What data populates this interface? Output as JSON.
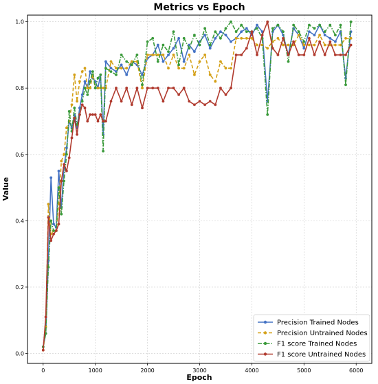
{
  "chart_data": {
    "type": "line",
    "title": "Metrics vs Epoch",
    "xlabel": "Epoch",
    "ylabel": "Value",
    "xlim": [
      -300,
      6300
    ],
    "ylim": [
      -0.03,
      1.02
    ],
    "xticks": [
      0,
      1000,
      2000,
      3000,
      4000,
      5000,
      6000
    ],
    "yticks": [
      0.0,
      0.2,
      0.4,
      0.6,
      0.8,
      1.0
    ],
    "grid": true,
    "legend_position": "bottom-right",
    "series": [
      {
        "name": "Precision Trained Nodes",
        "color": "#4472c4",
        "dash": "solid",
        "x": [
          0,
          50,
          100,
          150,
          200,
          250,
          300,
          350,
          400,
          450,
          500,
          550,
          600,
          650,
          700,
          750,
          800,
          850,
          900,
          950,
          1000,
          1050,
          1100,
          1150,
          1200,
          1300,
          1400,
          1500,
          1600,
          1700,
          1800,
          1900,
          2000,
          2100,
          2200,
          2300,
          2400,
          2500,
          2600,
          2700,
          2800,
          2900,
          3000,
          3100,
          3200,
          3300,
          3400,
          3500,
          3600,
          3700,
          3800,
          3900,
          4000,
          4100,
          4200,
          4300,
          4400,
          4500,
          4600,
          4700,
          4800,
          4900,
          5000,
          5100,
          5200,
          5300,
          5400,
          5500,
          5600,
          5700,
          5800,
          5900
        ],
        "y": [
          0.02,
          0.06,
          0.28,
          0.53,
          0.39,
          0.38,
          0.55,
          0.44,
          0.56,
          0.62,
          0.7,
          0.68,
          0.72,
          0.68,
          0.74,
          0.78,
          0.82,
          0.8,
          0.85,
          0.83,
          0.82,
          0.8,
          0.84,
          0.66,
          0.88,
          0.86,
          0.85,
          0.87,
          0.84,
          0.88,
          0.87,
          0.84,
          0.89,
          0.9,
          0.93,
          0.88,
          0.9,
          0.92,
          0.95,
          0.88,
          0.93,
          0.91,
          0.94,
          0.96,
          0.92,
          0.95,
          0.97,
          0.96,
          0.94,
          0.95,
          0.97,
          0.98,
          0.96,
          0.99,
          0.97,
          0.76,
          0.97,
          0.99,
          0.96,
          0.9,
          0.98,
          0.96,
          0.92,
          0.97,
          0.96,
          0.99,
          0.96,
          0.95,
          0.94,
          0.97,
          0.83,
          0.97
        ]
      },
      {
        "name": "Precision Untrained Nodes",
        "color": "#d4a017",
        "dash": "dashed",
        "x": [
          0,
          50,
          100,
          150,
          200,
          250,
          300,
          350,
          400,
          450,
          500,
          550,
          600,
          650,
          700,
          750,
          800,
          850,
          900,
          950,
          1000,
          1050,
          1100,
          1150,
          1200,
          1300,
          1400,
          1500,
          1600,
          1700,
          1800,
          1900,
          2000,
          2100,
          2200,
          2300,
          2400,
          2500,
          2600,
          2700,
          2800,
          2900,
          3000,
          3100,
          3200,
          3300,
          3400,
          3500,
          3600,
          3700,
          3800,
          3900,
          4000,
          4100,
          4200,
          4300,
          4400,
          4500,
          4600,
          4700,
          4800,
          4900,
          5000,
          5100,
          5200,
          5300,
          5400,
          5500,
          5600,
          5700,
          5800,
          5900
        ],
        "y": [
          0.01,
          0.08,
          0.45,
          0.36,
          0.37,
          0.37,
          0.45,
          0.58,
          0.6,
          0.68,
          0.7,
          0.75,
          0.84,
          0.76,
          0.82,
          0.85,
          0.86,
          0.8,
          0.8,
          0.84,
          0.8,
          0.8,
          0.8,
          0.8,
          0.8,
          0.88,
          0.86,
          0.86,
          0.86,
          0.88,
          0.88,
          0.8,
          0.9,
          0.9,
          0.9,
          0.9,
          0.86,
          0.9,
          0.86,
          0.86,
          0.9,
          0.84,
          0.88,
          0.9,
          0.84,
          0.82,
          0.88,
          0.86,
          0.86,
          0.95,
          0.95,
          0.95,
          0.95,
          0.93,
          0.93,
          0.92,
          0.94,
          0.95,
          0.93,
          0.93,
          0.93,
          0.96,
          0.93,
          0.93,
          0.93,
          0.96,
          0.93,
          0.93,
          0.93,
          0.93,
          0.95,
          0.95
        ]
      },
      {
        "name": "F1 score Trained Nodes",
        "color": "#3a9a3a",
        "dash": "dashdot",
        "x": [
          0,
          50,
          100,
          150,
          200,
          250,
          300,
          350,
          400,
          450,
          500,
          550,
          600,
          650,
          700,
          750,
          800,
          850,
          900,
          950,
          1000,
          1050,
          1100,
          1150,
          1200,
          1300,
          1400,
          1500,
          1600,
          1700,
          1800,
          1900,
          2000,
          2100,
          2200,
          2300,
          2400,
          2500,
          2600,
          2700,
          2800,
          2900,
          3000,
          3100,
          3200,
          3300,
          3400,
          3500,
          3600,
          3700,
          3800,
          3900,
          4000,
          4100,
          4200,
          4300,
          4400,
          4500,
          4600,
          4700,
          4800,
          4900,
          5000,
          5100,
          5200,
          5300,
          5400,
          5500,
          5600,
          5700,
          5800,
          5900
        ],
        "y": [
          0.02,
          0.06,
          0.26,
          0.4,
          0.37,
          0.37,
          0.5,
          0.42,
          0.52,
          0.6,
          0.73,
          0.67,
          0.74,
          0.69,
          0.72,
          0.76,
          0.8,
          0.78,
          0.82,
          0.85,
          0.8,
          0.83,
          0.84,
          0.61,
          0.86,
          0.85,
          0.84,
          0.9,
          0.88,
          0.87,
          0.9,
          0.81,
          0.94,
          0.95,
          0.88,
          0.93,
          0.91,
          0.97,
          0.87,
          0.95,
          0.92,
          0.96,
          0.93,
          0.98,
          0.93,
          0.97,
          0.95,
          0.98,
          1.0,
          0.97,
          0.99,
          0.97,
          0.97,
          0.98,
          0.95,
          0.72,
          0.98,
          0.99,
          0.97,
          0.88,
          0.99,
          0.97,
          0.94,
          0.99,
          0.98,
          0.99,
          0.97,
          0.99,
          0.96,
          0.99,
          0.81,
          1.0
        ]
      },
      {
        "name": "F1 score Untrained Nodes",
        "color": "#b03a2e",
        "dash": "solid",
        "x": [
          0,
          50,
          100,
          150,
          200,
          250,
          300,
          350,
          400,
          450,
          500,
          550,
          600,
          650,
          700,
          750,
          800,
          850,
          900,
          950,
          1000,
          1050,
          1100,
          1150,
          1200,
          1300,
          1400,
          1500,
          1600,
          1700,
          1800,
          1900,
          2000,
          2100,
          2200,
          2300,
          2400,
          2500,
          2600,
          2700,
          2800,
          2900,
          3000,
          3100,
          3200,
          3300,
          3400,
          3500,
          3600,
          3700,
          3800,
          3900,
          4000,
          4100,
          4200,
          4300,
          4400,
          4500,
          4600,
          4700,
          4800,
          4900,
          5000,
          5100,
          5200,
          5300,
          5400,
          5500,
          5600,
          5700,
          5800,
          5900
        ],
        "y": [
          0.01,
          0.11,
          0.41,
          0.34,
          0.36,
          0.37,
          0.39,
          0.52,
          0.57,
          0.55,
          0.59,
          0.65,
          0.71,
          0.66,
          0.72,
          0.75,
          0.74,
          0.7,
          0.72,
          0.72,
          0.72,
          0.7,
          0.72,
          0.7,
          0.7,
          0.76,
          0.8,
          0.76,
          0.8,
          0.75,
          0.8,
          0.74,
          0.8,
          0.8,
          0.8,
          0.76,
          0.8,
          0.8,
          0.78,
          0.8,
          0.76,
          0.75,
          0.76,
          0.75,
          0.76,
          0.75,
          0.8,
          0.78,
          0.8,
          0.9,
          0.9,
          0.92,
          0.97,
          0.9,
          0.96,
          1.0,
          0.92,
          0.9,
          0.95,
          0.9,
          0.94,
          0.9,
          0.9,
          0.95,
          0.9,
          0.94,
          0.9,
          0.94,
          0.9,
          0.9,
          0.9,
          0.93
        ]
      }
    ]
  }
}
